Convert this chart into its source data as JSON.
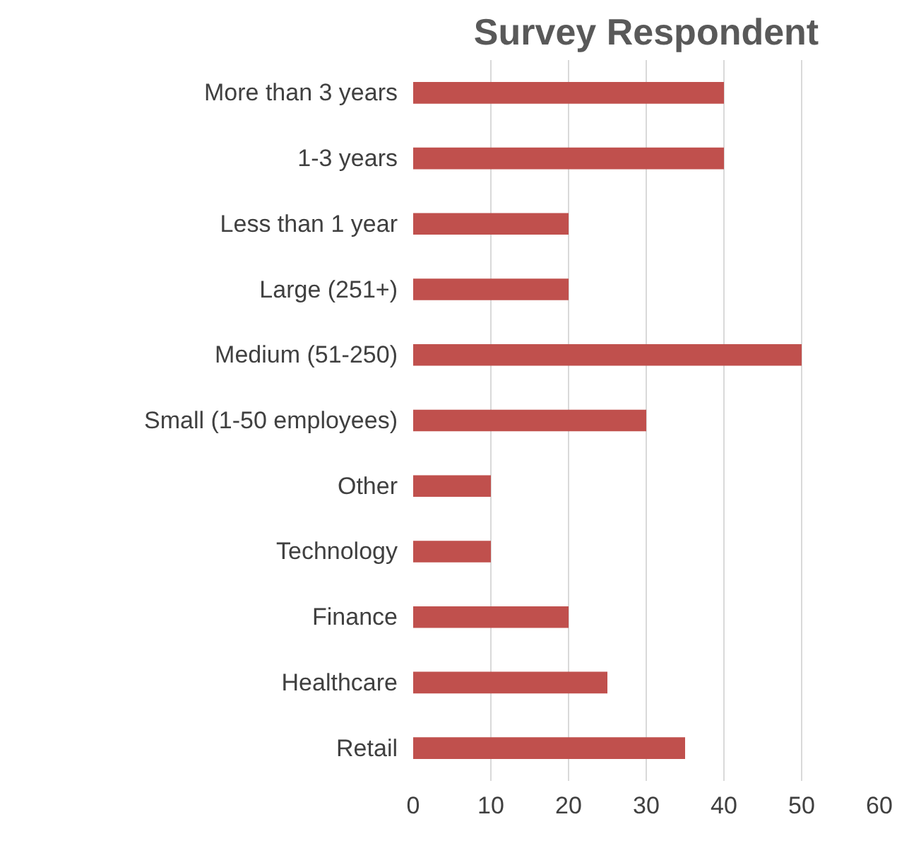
{
  "chart_data": {
    "type": "bar",
    "orientation": "horizontal",
    "title": "Survey Respondent",
    "categories": [
      "More than 3 years",
      "1-3 years",
      "Less than 1 year",
      "Large (251+)",
      "Medium (51-250)",
      "Small (1-50 employees)",
      "Other",
      "Technology",
      "Finance",
      "Healthcare",
      "Retail"
    ],
    "values": [
      40,
      40,
      20,
      20,
      50,
      30,
      10,
      10,
      20,
      25,
      35
    ],
    "color": "#c0504d",
    "xlim": [
      0,
      60
    ],
    "xticks": [
      0,
      10,
      20,
      30,
      40,
      50,
      60
    ],
    "grid": "x"
  }
}
